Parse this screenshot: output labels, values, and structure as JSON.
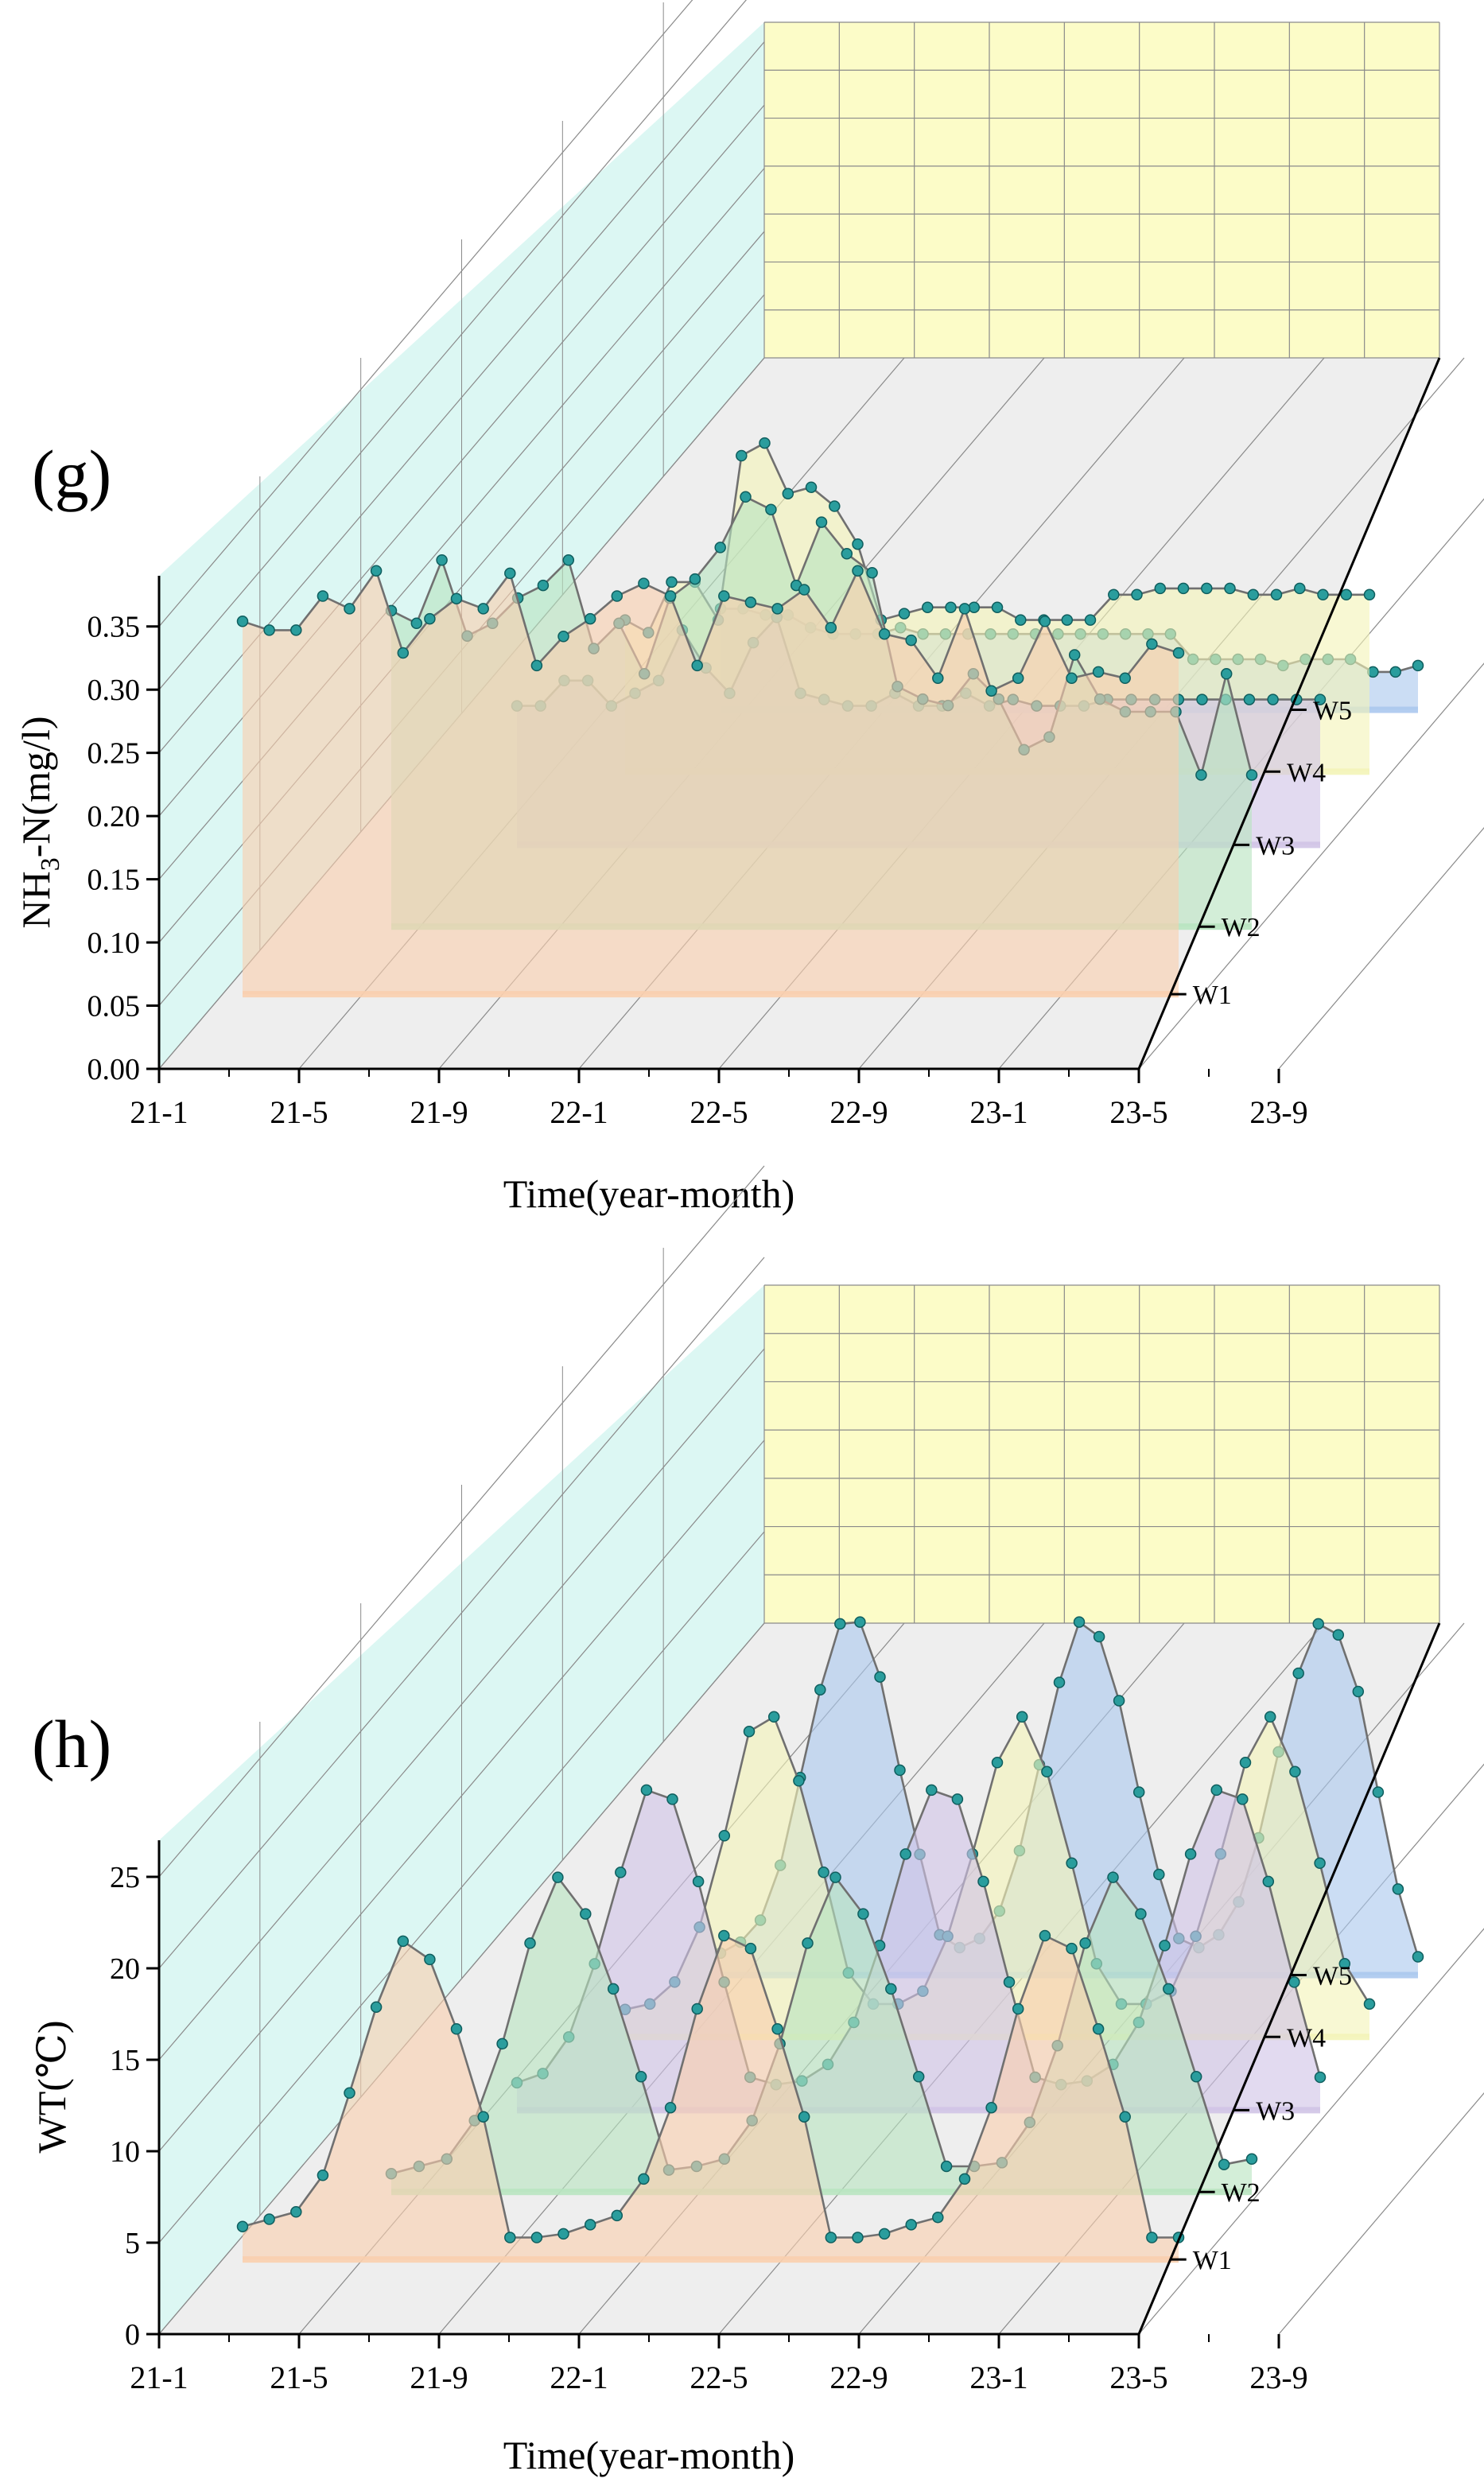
{
  "colors": {
    "backWall": "#fcfcc8",
    "leftWall": "#dcf7f3",
    "floor": "#eeeeee",
    "grid": "#8a8a8a",
    "line": "#707070",
    "marker": "#2a9d9d",
    "markerDark": "#0f5e5e",
    "series": [
      "#f9cfae",
      "#b8e4c0",
      "#d0c4e6",
      "#f3f4b8",
      "#abc8ee"
    ]
  },
  "chart_data": [
    {
      "type": "3d-wall-line",
      "panel_label": "(g)",
      "ylabel_main": "NH",
      "ylabel_sub": "3",
      "ylabel_rest": "-N(mg/l)",
      "xlabel": "Time(year-month)",
      "x_tick_labels": [
        "21-1",
        "21-5",
        "21-9",
        "22-1",
        "22-5",
        "22-9",
        "23-1",
        "23-5",
        "23-9"
      ],
      "y_tick_labels": [
        "0.00",
        "0.05",
        "0.10",
        "0.15",
        "0.20",
        "0.25",
        "0.30",
        "0.35"
      ],
      "ylim": [
        0,
        0.375
      ],
      "series_names": [
        "W1",
        "W2",
        "W3",
        "W4",
        "W5"
      ],
      "series": [
        {
          "name": "W1",
          "values": [
            0.295,
            0.288,
            0.288,
            0.315,
            0.305,
            0.335,
            0.27,
            0.297,
            0.313,
            0.305,
            0.333,
            0.26,
            0.283,
            0.297,
            0.315,
            0.325,
            0.315,
            0.26,
            0.315,
            0.31,
            0.305,
            0.32,
            0.29,
            0.335,
            0.285,
            0.28,
            0.25,
            0.305,
            0.24,
            0.25,
            0.295,
            0.25,
            0.255,
            0.25,
            0.277,
            0.27
          ]
        },
        {
          "name": "W2",
          "values": [
            0.25,
            0.24,
            0.29,
            0.23,
            0.24,
            0.26,
            0.27,
            0.29,
            0.22,
            0.24,
            0.2,
            0.26,
            0.275,
            0.3,
            0.34,
            0.33,
            0.27,
            0.32,
            0.295,
            0.28,
            0.19,
            0.18,
            0.175,
            0.2,
            0.18,
            0.14,
            0.15,
            0.215,
            0.18,
            0.17,
            0.17,
            0.17,
            0.12,
            0.2,
            0.12
          ]
        },
        {
          "name": "W3",
          "values": [
            0.11,
            0.11,
            0.13,
            0.13,
            0.11,
            0.12,
            0.13,
            0.17,
            0.14,
            0.12,
            0.16,
            0.18,
            0.12,
            0.115,
            0.11,
            0.11,
            0.12,
            0.11,
            0.11,
            0.12,
            0.11,
            0.115,
            0.11,
            0.11,
            0.11,
            0.115,
            0.115,
            0.115,
            0.115,
            0.115,
            0.115,
            0.115,
            0.115,
            0.115,
            0.115
          ]
        },
        {
          "name": "W4",
          "values": [
            0.12,
            0.11,
            0.15,
            0.15,
            0.12,
            0.25,
            0.26,
            0.22,
            0.225,
            0.21,
            0.18,
            0.12,
            0.125,
            0.13,
            0.13,
            0.13,
            0.13,
            0.12,
            0.12,
            0.12,
            0.12,
            0.14,
            0.14,
            0.145,
            0.145,
            0.145,
            0.145,
            0.14,
            0.14,
            0.145,
            0.14,
            0.14,
            0.14
          ]
        },
        {
          "name": "W5",
          "values": [
            0.08,
            0.08,
            0.075,
            0.075,
            0.065,
            0.06,
            0.06,
            0.06,
            0.065,
            0.06,
            0.06,
            0.06,
            0.06,
            0.06,
            0.06,
            0.06,
            0.06,
            0.06,
            0.06,
            0.06,
            0.06,
            0.04,
            0.04,
            0.04,
            0.04,
            0.035,
            0.04,
            0.04,
            0.04,
            0.03,
            0.03,
            0.035
          ]
        }
      ]
    },
    {
      "type": "3d-wall-line",
      "panel_label": "(h)",
      "ylabel_main": "WT(℃)",
      "ylabel_sub": "",
      "ylabel_rest": "",
      "xlabel": "Time(year-month)",
      "x_tick_labels": [
        "21-1",
        "21-5",
        "21-9",
        "22-1",
        "22-5",
        "22-9",
        "23-1",
        "23-5",
        "23-9"
      ],
      "y_tick_labels": [
        "0",
        "5",
        "10",
        "15",
        "20",
        "25"
      ],
      "ylim": [
        0,
        27
      ],
      "series_names": [
        "W1",
        "W2",
        "W3",
        "W4",
        "W5"
      ],
      "series": [
        {
          "name": "W1",
          "values": [
            1.8,
            2.2,
            2.6,
            4.6,
            9.1,
            13.8,
            17.4,
            16.4,
            12.6,
            7.8,
            1.2,
            1.2,
            1.4,
            1.9,
            2.4,
            4.4,
            8.3,
            13.7,
            17.7,
            17,
            12.6,
            7.8,
            1.2,
            1.2,
            1.4,
            1.9,
            2.3,
            4.4,
            8.3,
            13.7,
            17.7,
            17,
            12.6,
            7.8,
            1.2,
            1.2
          ]
        },
        {
          "name": "W2",
          "values": [
            1,
            1.4,
            1.8,
            3.9,
            8.1,
            13.6,
            17.2,
            15.2,
            11.1,
            6.3,
            1.2,
            1.4,
            1.8,
            3.9,
            8.1,
            13.6,
            17.2,
            15.2,
            11.1,
            6.3,
            1.4,
            1.4,
            1.6,
            3.8,
            8,
            13.6,
            17.2,
            15.2,
            11.1,
            6.3,
            1.5,
            1.8
          ]
        },
        {
          "name": "W3",
          "values": [
            1.5,
            2,
            4,
            8,
            13,
            17.5,
            17,
            12.5,
            7,
            1.8,
            1.4,
            1.6,
            2.5,
            4.8,
            9,
            14,
            17.5,
            17,
            12.5,
            7,
            1.8,
            1.4,
            1.6,
            2.5,
            4.8,
            9,
            14,
            17.5,
            17,
            12.5,
            7,
            1.8
          ]
        },
        {
          "name": "W4",
          "values": [
            1.5,
            1.8,
            3,
            6,
            11,
            16.7,
            17.5,
            14,
            9,
            3.5,
            1.8,
            1.8,
            2.5,
            5.5,
            10,
            15,
            17.5,
            14.5,
            9.5,
            4,
            1.8,
            1.8,
            2.5,
            5.5,
            10,
            15,
            17.5,
            14.5,
            9.5,
            4,
            1.8
          ]
        },
        {
          "name": "W5",
          "values": [
            1.2,
            1.8,
            3,
            6,
            10.8,
            15.6,
            19.2,
            19.3,
            16.3,
            11.2,
            6.6,
            2.2,
            1.5,
            2,
            3.5,
            6.8,
            11.5,
            16,
            19.3,
            18.5,
            15,
            10,
            5.5,
            2,
            1.5,
            2.2,
            4,
            7.5,
            12.2,
            16.5,
            19.2,
            18.6,
            15.5,
            10,
            4.7,
            1
          ]
        }
      ]
    }
  ]
}
